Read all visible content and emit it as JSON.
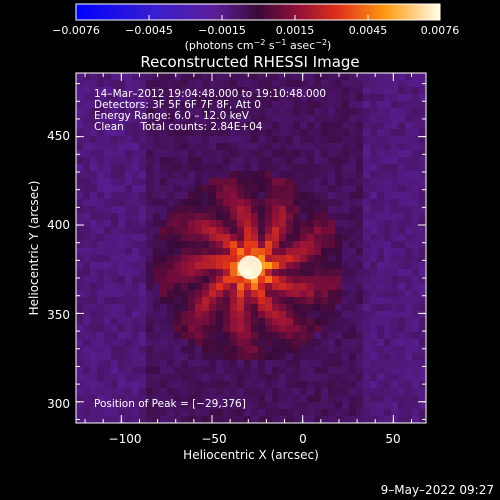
{
  "colorbar": {
    "ticks": [
      "−0.0076",
      "−0.0045",
      "−0.0015",
      "0.0015",
      "0.0045",
      "0.0076"
    ],
    "unit_main": "(photons cm",
    "unit_sup1": "−2",
    "unit_s": " s",
    "unit_sup2": "−1",
    "unit_asec": " asec",
    "unit_sup3": "−2",
    "unit_close": ")"
  },
  "chart_data": {
    "type": "heatmap",
    "title": "Reconstructed RHESSI Image",
    "xlabel": "Heliocentric X (arcsec)",
    "ylabel": "Heliocentric Y (arcsec)",
    "xlim": [
      -125,
      68
    ],
    "ylim": [
      288,
      486
    ],
    "x_ticks": [
      "−100",
      "−50",
      "0",
      "50"
    ],
    "y_ticks": [
      "300",
      "350",
      "400",
      "450"
    ],
    "colorscale": {
      "min": -0.0076,
      "max": 0.0076,
      "name": "RHESSI flux"
    },
    "peak": {
      "x": -29,
      "y": 376
    },
    "annotations": [
      "14–Mar–2012 19:04:48.000 to 19:10:48.000",
      "Detectors: 3F 5F 6F 7F 8F, Att 0",
      "Energy Range: 6.0 – 12.0 keV",
      "Clean     Total counts: 2.84E+04"
    ],
    "peak_label": "Position of Peak = [−29,376]"
  },
  "footer": {
    "timestamp": "9–May–2022 09:27"
  }
}
